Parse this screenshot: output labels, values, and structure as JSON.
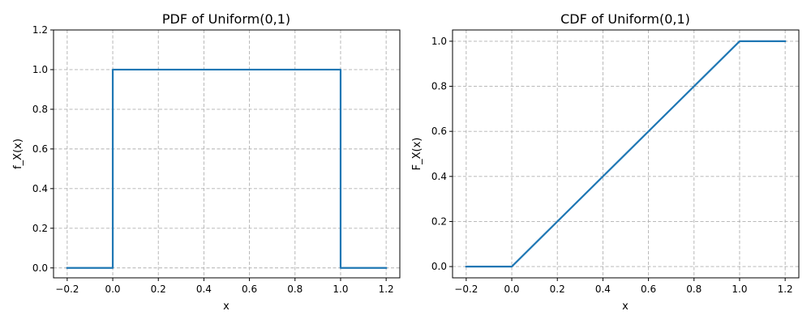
{
  "chart_data": [
    {
      "type": "line",
      "title": "PDF of Uniform(0,1)",
      "xlabel": "x",
      "ylabel": "f_X(x)",
      "xlim": [
        -0.26,
        1.26
      ],
      "ylim": [
        -0.05,
        1.2
      ],
      "xticks": [
        "−0.2",
        "0.0",
        "0.2",
        "0.4",
        "0.6",
        "0.8",
        "1.0",
        "1.2"
      ],
      "xtick_values": [
        -0.2,
        0.0,
        0.2,
        0.4,
        0.6,
        0.8,
        1.0,
        1.2
      ],
      "yticks": [
        "0.0",
        "0.2",
        "0.4",
        "0.6",
        "0.8",
        "1.0",
        "1.2"
      ],
      "ytick_values": [
        0.0,
        0.2,
        0.4,
        0.6,
        0.8,
        1.0,
        1.2
      ],
      "grid": true,
      "color": "#1f77b4",
      "series": [
        {
          "x": [
            -0.2,
            0.0,
            0.0,
            1.0,
            1.0,
            1.2
          ],
          "y": [
            0,
            0,
            1,
            1,
            0,
            0
          ]
        }
      ]
    },
    {
      "type": "line",
      "title": "CDF of Uniform(0,1)",
      "xlabel": "x",
      "ylabel": "F_X(x)",
      "xlim": [
        -0.26,
        1.26
      ],
      "ylim": [
        -0.05,
        1.05
      ],
      "xticks": [
        "−0.2",
        "0.0",
        "0.2",
        "0.4",
        "0.6",
        "0.8",
        "1.0",
        "1.2"
      ],
      "xtick_values": [
        -0.2,
        0.0,
        0.2,
        0.4,
        0.6,
        0.8,
        1.0,
        1.2
      ],
      "yticks": [
        "0.0",
        "0.2",
        "0.4",
        "0.6",
        "0.8",
        "1.0"
      ],
      "ytick_values": [
        0.0,
        0.2,
        0.4,
        0.6,
        0.8,
        1.0
      ],
      "grid": true,
      "color": "#1f77b4",
      "series": [
        {
          "x": [
            -0.2,
            0.0,
            1.0,
            1.2
          ],
          "y": [
            0,
            0,
            1,
            1
          ]
        }
      ]
    }
  ]
}
